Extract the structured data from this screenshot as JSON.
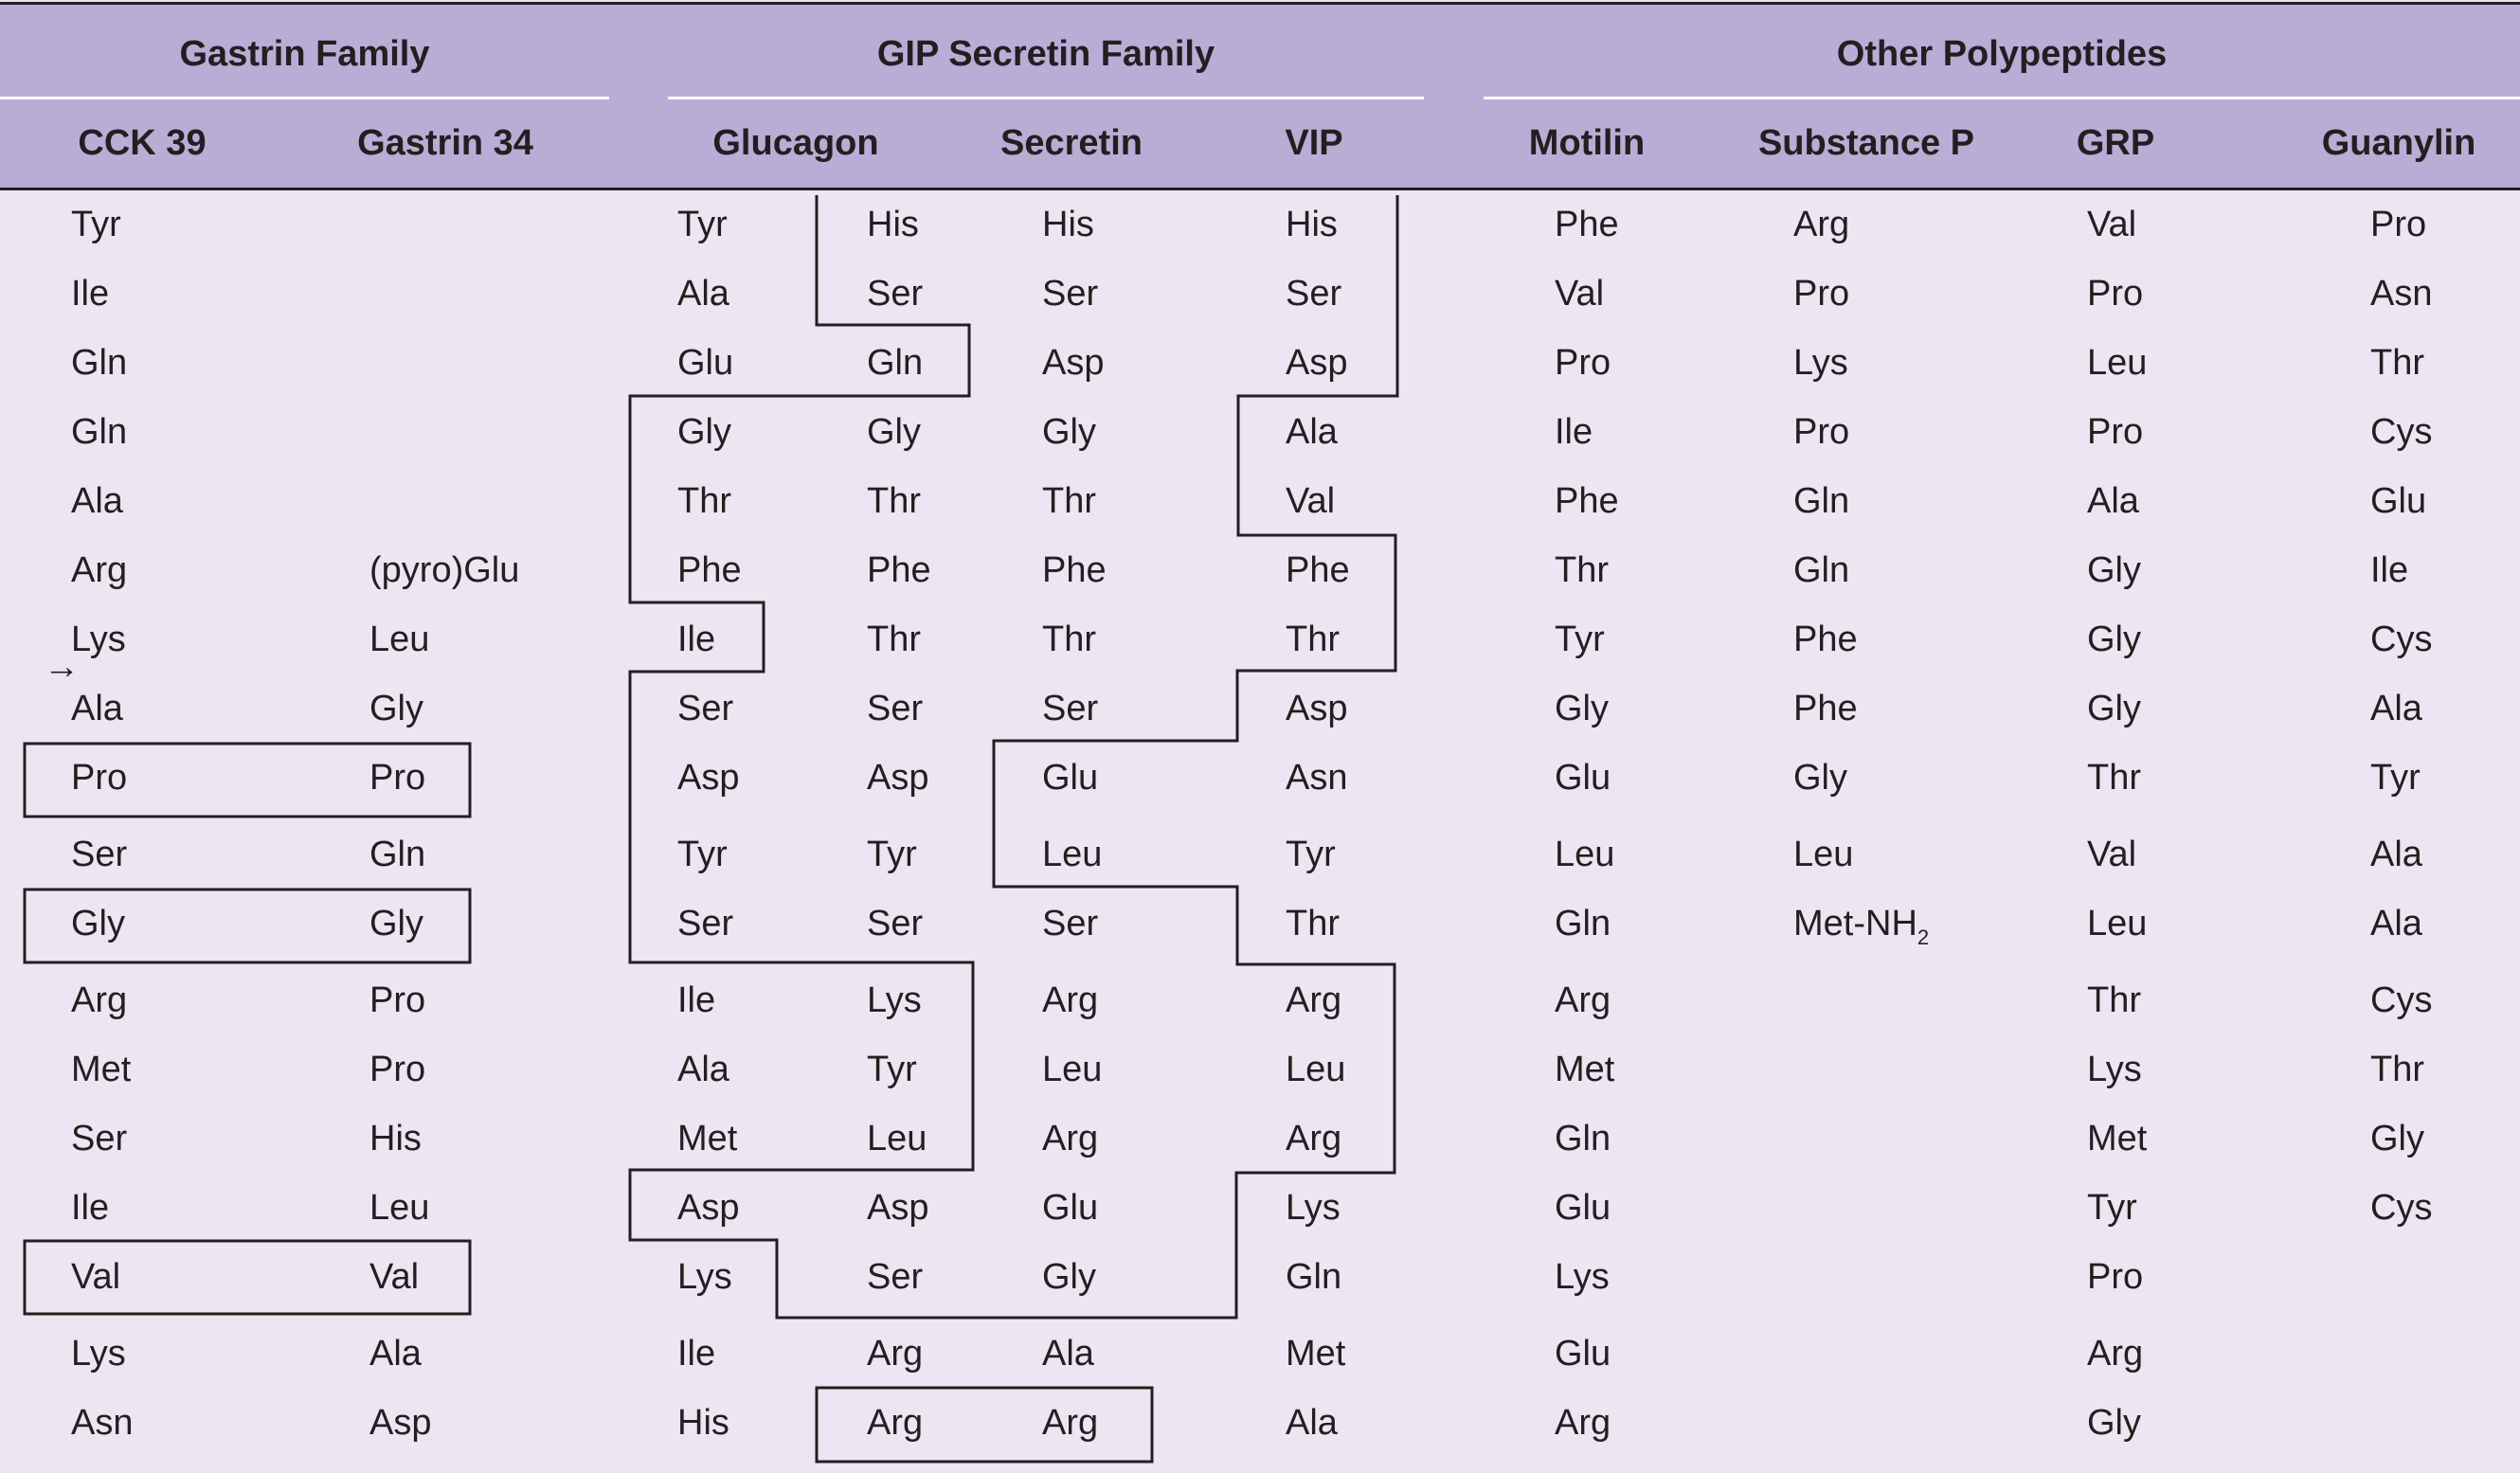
{
  "groups": [
    "Gastrin Family",
    "GIP Secretin Family",
    "Other Polypeptides"
  ],
  "columns": [
    "CCK 39",
    "Gastrin 34",
    "Glucagon",
    "",
    "Secretin",
    "VIP",
    "Motilin",
    "Substance P",
    "GRP",
    "Guanylin"
  ],
  "rows": [
    [
      "Tyr",
      "",
      "Tyr",
      "His",
      "His",
      "His",
      "Phe",
      "Arg",
      "Val",
      "Pro"
    ],
    [
      "Ile",
      "",
      "Ala",
      "Ser",
      "Ser",
      "Ser",
      "Val",
      "Pro",
      "Pro",
      "Asn"
    ],
    [
      "Gln",
      "",
      "Glu",
      "Gln",
      "Asp",
      "Asp",
      "Pro",
      "Lys",
      "Leu",
      "Thr"
    ],
    [
      "Gln",
      "",
      "Gly",
      "Gly",
      "Gly",
      "Ala",
      "Ile",
      "Pro",
      "Pro",
      "Cys"
    ],
    [
      "Ala",
      "",
      "Thr",
      "Thr",
      "Thr",
      "Val",
      "Phe",
      "Gln",
      "Ala",
      "Glu"
    ],
    [
      "Arg",
      "(pyro)Glu",
      "Phe",
      "Phe",
      "Phe",
      "Phe",
      "Thr",
      "Gln",
      "Gly",
      "Ile"
    ],
    [
      "Lys",
      "Leu",
      "Ile",
      "Thr",
      "Thr",
      "Thr",
      "Tyr",
      "Phe",
      "Gly",
      "Cys"
    ],
    [
      "Ala",
      "Gly",
      "Ser",
      "Ser",
      "Ser",
      "Asp",
      "Gly",
      "Phe",
      "Gly",
      "Ala"
    ],
    [
      "Pro",
      "Pro",
      "Asp",
      "Asp",
      "Glu",
      "Asn",
      "Glu",
      "Gly",
      "Thr",
      "Tyr"
    ],
    [
      "Ser",
      "Gln",
      "Tyr",
      "Tyr",
      "Leu",
      "Tyr",
      "Leu",
      "Leu",
      "Val",
      "Ala"
    ],
    [
      "Gly",
      "Gly",
      "Ser",
      "Ser",
      "Ser",
      "Thr",
      "Gln",
      "Met-NH",
      "Leu",
      "Ala"
    ],
    [
      "Arg",
      "Pro",
      "Ile",
      "Lys",
      "Arg",
      "Arg",
      "Arg",
      "",
      "Thr",
      "Cys"
    ],
    [
      "Met",
      "Pro",
      "Ala",
      "Tyr",
      "Leu",
      "Leu",
      "Met",
      "",
      "Lys",
      "Thr"
    ],
    [
      "Ser",
      "His",
      "Met",
      "Leu",
      "Arg",
      "Arg",
      "Gln",
      "",
      "Met",
      "Gly"
    ],
    [
      "Ile",
      "Leu",
      "Asp",
      "Asp",
      "Glu",
      "Lys",
      "Glu",
      "",
      "Tyr",
      "Cys"
    ],
    [
      "Val",
      "Val",
      "Lys",
      "Ser",
      "Gly",
      "Gln",
      "Lys",
      "",
      "Pro",
      ""
    ],
    [
      "Lys",
      "Ala",
      "Ile",
      "Arg",
      "Ala",
      "Met",
      "Glu",
      "",
      "Arg",
      ""
    ],
    [
      "Asn",
      "Asp",
      "His",
      "Arg",
      "Arg",
      "Ala",
      "Arg",
      "",
      "Gly",
      ""
    ]
  ],
  "subscript": "2",
  "arrow_glyph": "→",
  "colors": {
    "header": "#b9add6",
    "body": "#ece6f2",
    "text": "#231f20",
    "rule": "#ffffff"
  }
}
